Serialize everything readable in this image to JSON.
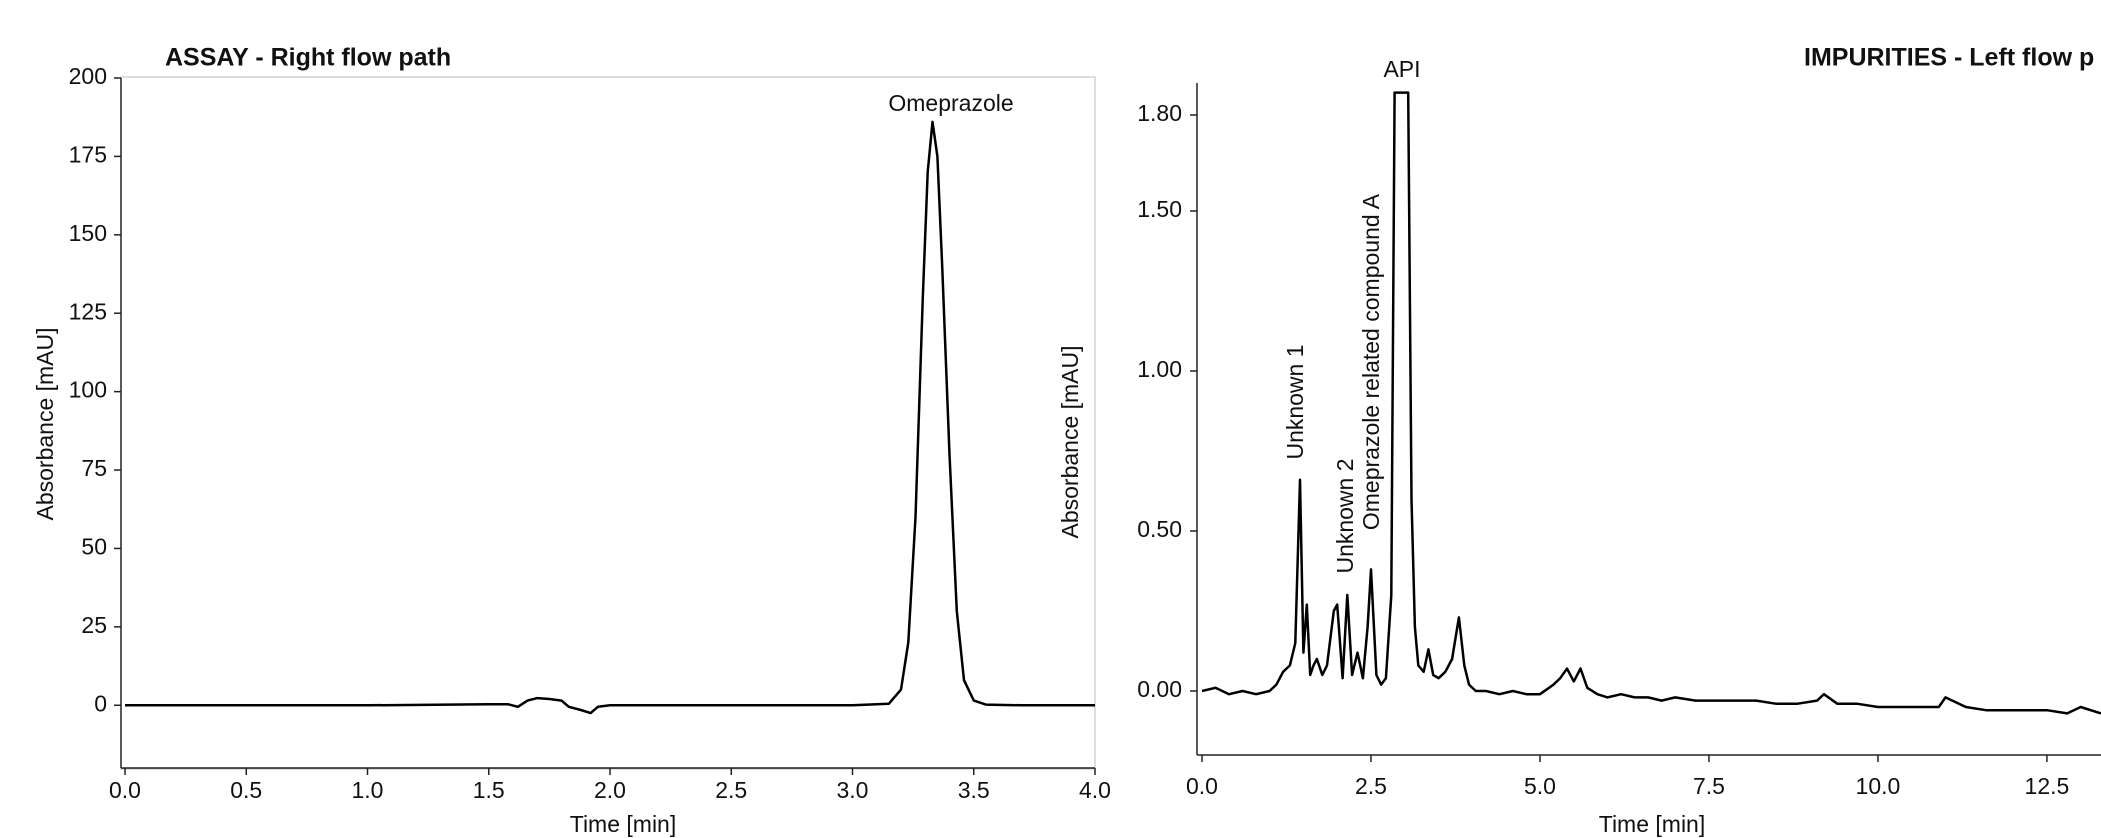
{
  "chart_data": [
    {
      "type": "line",
      "title": "ASSAY - Right flow path",
      "x_label": "Time [min]",
      "y_label": "Absorbance [mAU]",
      "annotations": [
        "Omeprazole"
      ],
      "xlim": [
        0,
        4
      ],
      "ylim": [
        -20,
        200
      ],
      "xticks": [
        {
          "value": 0,
          "label": "0.0"
        },
        0.5,
        {
          "value": 1,
          "label": "1.0"
        },
        1.5,
        {
          "value": 2,
          "label": "2.0"
        },
        2.5,
        {
          "value": 3,
          "label": "3.0"
        },
        3.5,
        {
          "value": 4,
          "label": "4.0"
        }
      ],
      "yticks": [
        0,
        25,
        50,
        75,
        100,
        125,
        150,
        175,
        200
      ],
      "frame": true,
      "series": [
        {
          "color": "#000000",
          "x": [
            0,
            1.0,
            1.5,
            1.58,
            1.62,
            1.66,
            1.7,
            1.75,
            1.8,
            1.83,
            1.88,
            1.92,
            1.95,
            2.0,
            3.0,
            3.15,
            3.2,
            3.23,
            3.26,
            3.29,
            3.31,
            3.33,
            3.35,
            3.37,
            3.4,
            3.43,
            3.46,
            3.5,
            3.55,
            3.7,
            4.0
          ],
          "values": [
            0,
            0,
            0.3,
            0.3,
            -0.5,
            1.5,
            2.3,
            2,
            1.5,
            -0.5,
            -1.5,
            -2.5,
            -0.5,
            0,
            0,
            0.5,
            5,
            20,
            60,
            130,
            170,
            186,
            175,
            140,
            80,
            30,
            8,
            1.5,
            0.2,
            0,
            0
          ]
        }
      ]
    },
    {
      "type": "line",
      "title": "IMPURITIES - Left flow p",
      "x_label": "Time [min]",
      "y_label": "Absorbance [mAU]",
      "annotations": [
        "Unknown 1",
        "Unknown 2",
        "Omeprazole related compound A",
        "API"
      ],
      "xlim": [
        0,
        13.3
      ],
      "ylim": [
        -0.2,
        1.9
      ],
      "xticks": [
        {
          "value": 0,
          "label": "0.0"
        },
        2.5,
        {
          "value": 5,
          "label": "5.0"
        },
        7.5,
        {
          "value": 10,
          "label": "10.0"
        },
        12.5
      ],
      "yticks": [
        {
          "value": 0,
          "label": "0.00"
        },
        {
          "value": 0.5,
          "label": "0.50"
        },
        {
          "value": 1,
          "label": "1.00"
        },
        {
          "value": 1.5,
          "label": "1.50"
        },
        {
          "value": 1.8,
          "label": "1.80"
        }
      ],
      "frame": false,
      "series": [
        {
          "color": "#000000",
          "x": [
            0,
            0.2,
            0.4,
            0.6,
            0.8,
            1.0,
            1.1,
            1.2,
            1.3,
            1.38,
            1.45,
            1.5,
            1.55,
            1.6,
            1.65,
            1.7,
            1.78,
            1.85,
            1.95,
            2.0,
            2.08,
            2.15,
            2.22,
            2.3,
            2.38,
            2.45,
            2.5,
            2.58,
            2.65,
            2.72,
            2.8,
            2.85,
            3.05,
            3.1,
            3.15,
            3.2,
            3.28,
            3.35,
            3.42,
            3.5,
            3.6,
            3.7,
            3.8,
            3.88,
            3.95,
            4.05,
            4.2,
            4.4,
            4.6,
            4.8,
            5.0,
            5.2,
            5.3,
            5.4,
            5.5,
            5.6,
            5.7,
            5.85,
            6.0,
            6.2,
            6.4,
            6.6,
            6.8,
            7.0,
            7.3,
            7.6,
            7.9,
            8.2,
            8.5,
            8.8,
            9.1,
            9.2,
            9.4,
            9.7,
            10.0,
            10.3,
            10.6,
            10.9,
            11.0,
            11.3,
            11.6,
            11.9,
            12.2,
            12.5,
            12.8,
            13.0,
            13.3
          ],
          "values": [
            0,
            0.01,
            -0.01,
            0.0,
            -0.01,
            0.0,
            0.02,
            0.06,
            0.08,
            0.15,
            0.66,
            0.12,
            0.27,
            0.05,
            0.08,
            0.1,
            0.05,
            0.08,
            0.25,
            0.27,
            0.04,
            0.3,
            0.05,
            0.12,
            0.04,
            0.2,
            0.38,
            0.05,
            0.02,
            0.04,
            0.3,
            1.87,
            1.87,
            0.6,
            0.2,
            0.08,
            0.06,
            0.13,
            0.05,
            0.04,
            0.06,
            0.1,
            0.23,
            0.08,
            0.02,
            0.0,
            0.0,
            -0.01,
            0.0,
            -0.01,
            -0.01,
            0.02,
            0.04,
            0.07,
            0.03,
            0.07,
            0.01,
            -0.01,
            -0.02,
            -0.01,
            -0.02,
            -0.02,
            -0.03,
            -0.02,
            -0.03,
            -0.03,
            -0.03,
            -0.03,
            -0.04,
            -0.04,
            -0.03,
            -0.01,
            -0.04,
            -0.04,
            -0.05,
            -0.05,
            -0.05,
            -0.05,
            -0.02,
            -0.05,
            -0.06,
            -0.06,
            -0.06,
            -0.06,
            -0.07,
            -0.05,
            -0.07
          ]
        }
      ]
    }
  ]
}
